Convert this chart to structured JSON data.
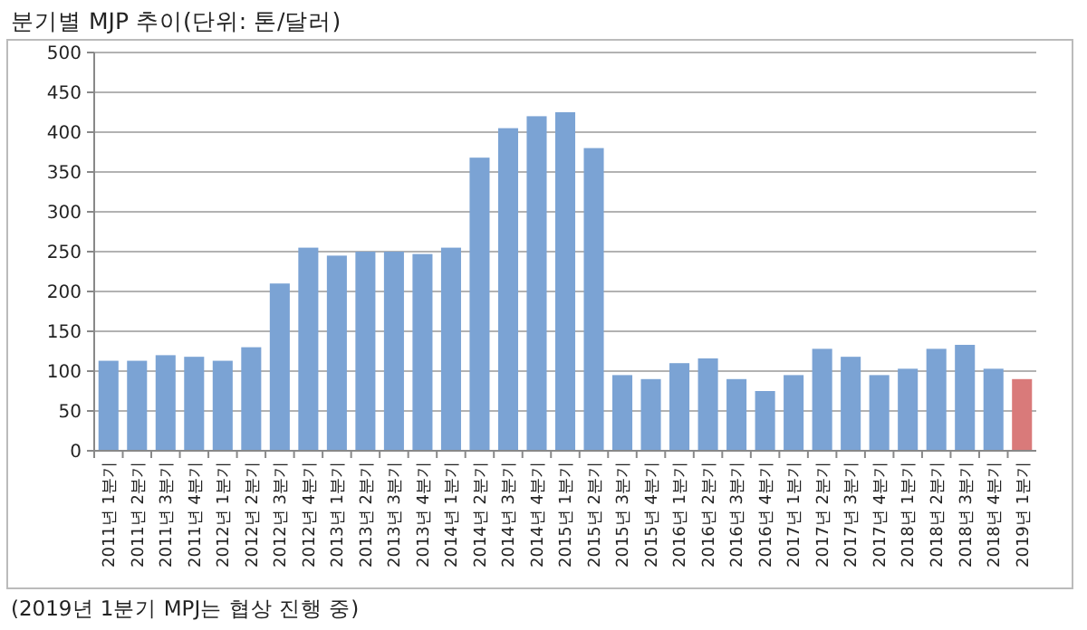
{
  "chart_data": {
    "type": "bar",
    "title": "분기별 MJP 추이(단위: 톤/달러)",
    "categories": [
      "2011년 1분기",
      "2011년 2분기",
      "2011년 3분기",
      "2011년 4분기",
      "2012년 1분기",
      "2012년 2분기",
      "2012년 3분기",
      "2012년 4분기",
      "2013년 1분기",
      "2013년 2분기",
      "2013년 3분기",
      "2013년 4분기",
      "2014년 1분기",
      "2014년 2분기",
      "2014년 3분기",
      "2014년 4분기",
      "2015년 1분기",
      "2015년 2분기",
      "2015년 3분기",
      "2015년 4분기",
      "2016년 1분기",
      "2016년 2분기",
      "2016년 3분기",
      "2016년 4분기",
      "2017년 1분기",
      "2017년 2분기",
      "2017년 3분기",
      "2017년 4분기",
      "2018년 1분기",
      "2018년 2분기",
      "2018년 3분기",
      "2018년 4분기",
      "2019년 1분기"
    ],
    "values": [
      113,
      113,
      120,
      118,
      113,
      130,
      210,
      255,
      245,
      250,
      250,
      247,
      255,
      368,
      405,
      420,
      425,
      380,
      95,
      90,
      110,
      116,
      90,
      75,
      95,
      128,
      118,
      95,
      103,
      128,
      133,
      103,
      90
    ],
    "colors": [
      "#7ba3d4",
      "#7ba3d4",
      "#7ba3d4",
      "#7ba3d4",
      "#7ba3d4",
      "#7ba3d4",
      "#7ba3d4",
      "#7ba3d4",
      "#7ba3d4",
      "#7ba3d4",
      "#7ba3d4",
      "#7ba3d4",
      "#7ba3d4",
      "#7ba3d4",
      "#7ba3d4",
      "#7ba3d4",
      "#7ba3d4",
      "#7ba3d4",
      "#7ba3d4",
      "#7ba3d4",
      "#7ba3d4",
      "#7ba3d4",
      "#7ba3d4",
      "#7ba3d4",
      "#7ba3d4",
      "#7ba3d4",
      "#7ba3d4",
      "#7ba3d4",
      "#7ba3d4",
      "#7ba3d4",
      "#7ba3d4",
      "#7ba3d4",
      "#d97a7a"
    ],
    "ylim": [
      0,
      500
    ],
    "yticks": [
      0,
      50,
      100,
      150,
      200,
      250,
      300,
      350,
      400,
      450,
      500
    ],
    "grid": "y",
    "annotations": [
      "(2019년 1분기 MPJ는 협상 진행 중)"
    ]
  }
}
